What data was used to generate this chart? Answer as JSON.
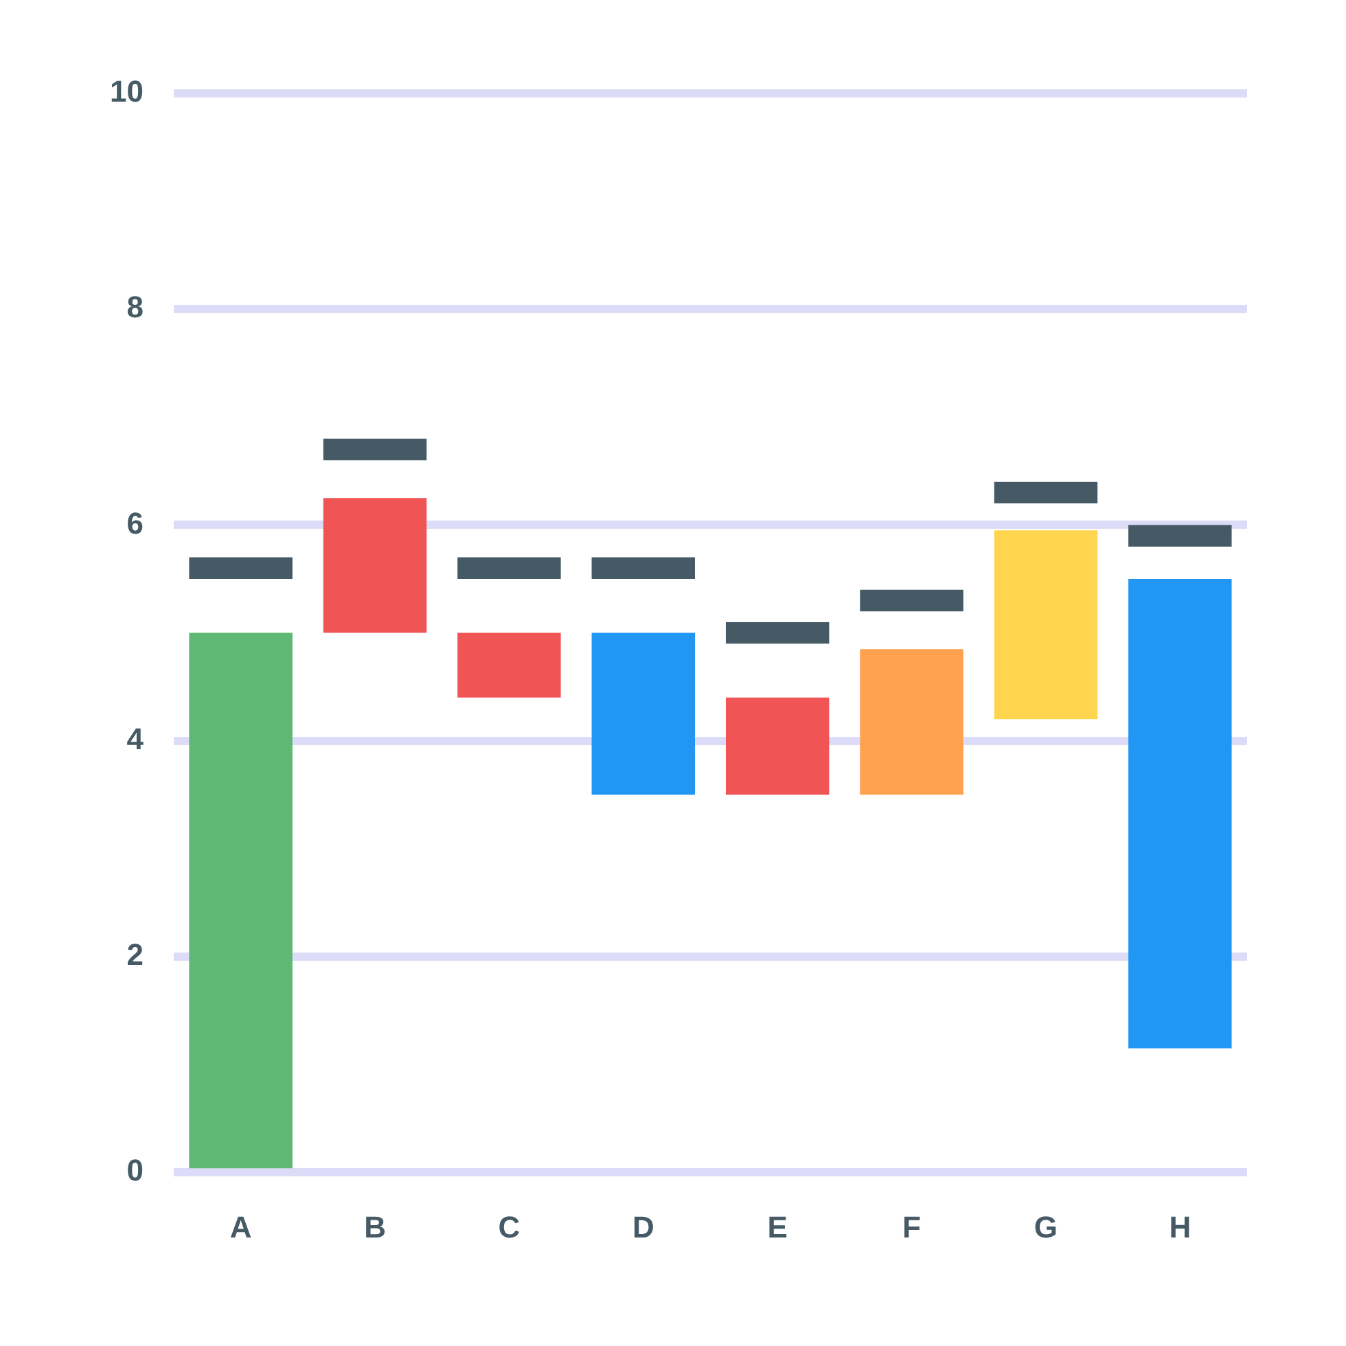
{
  "chart_data": {
    "type": "bar",
    "categories": [
      "A",
      "B",
      "C",
      "D",
      "E",
      "F",
      "G",
      "H"
    ],
    "series": [
      {
        "colors": [
          "#5fb874",
          "#f05454",
          "#f05454",
          "#2196f3",
          "#f05454",
          "#ffa14e",
          "#ffd54f",
          "#2196f3"
        ],
        "base": [
          0,
          5.0,
          4.4,
          3.5,
          3.5,
          3.5,
          4.2,
          1.15
        ],
        "values": [
          5.0,
          1.25,
          0.6,
          1.5,
          0.9,
          1.35,
          1.75,
          4.35
        ]
      },
      {
        "color": "#455a64",
        "base": [
          5.5,
          6.6,
          5.5,
          5.5,
          4.9,
          5.2,
          6.2,
          5.8
        ],
        "values": [
          0.2,
          0.2,
          0.2,
          0.2,
          0.2,
          0.2,
          0.2,
          0.2
        ]
      }
    ],
    "ylim": [
      0,
      10
    ],
    "yticks": [
      0,
      2,
      4,
      6,
      8,
      10
    ],
    "grid": "y"
  }
}
